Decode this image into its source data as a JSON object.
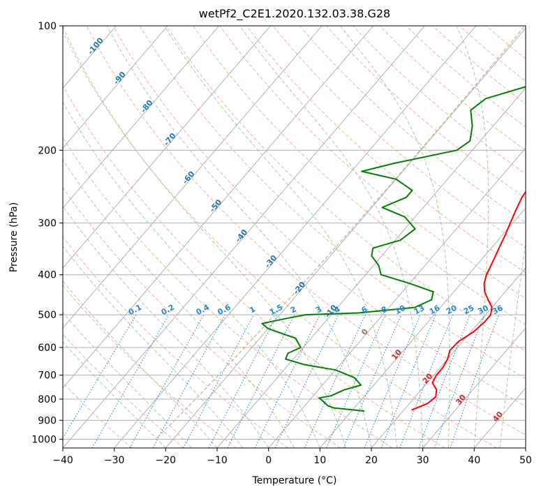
{
  "chart_data": {
    "type": "line",
    "title": "wetPf2_C2E1.2020.132.03.38.G28",
    "xlabel": "Temperature (°C)",
    "ylabel": "Pressure (hPa)",
    "xlim": [
      -40,
      50
    ],
    "ylim": [
      1050,
      100
    ],
    "y_scale": "log",
    "x_ticks": [
      "−40",
      "−30",
      "−20",
      "−10",
      "0",
      "10",
      "20",
      "30",
      "40",
      "50"
    ],
    "y_ticks": [
      {
        "p": 100,
        "label": "100"
      },
      {
        "p": 200,
        "label": "200"
      },
      {
        "p": 300,
        "label": "300"
      },
      {
        "p": 400,
        "label": "400"
      },
      {
        "p": 500,
        "label": "500"
      },
      {
        "p": 600,
        "label": "600"
      },
      {
        "p": 700,
        "label": "700"
      },
      {
        "p": 800,
        "label": "800"
      },
      {
        "p": 900,
        "label": "900"
      },
      {
        "p": 1000,
        "label": "1000"
      }
    ],
    "grid": true,
    "colors": {
      "temperature": "#ff0000",
      "dewpoint": "#008000",
      "isotherm_label": "#1f77b4",
      "mixing_ratio": "#1e88e5",
      "dry_adiabat": "#ffa07a",
      "moist_adiabat": "#90c890",
      "lcl_curve": "#d2b48c",
      "freezing_label": "#808080",
      "warm_label": "#d62728"
    },
    "series": [
      {
        "key": "temperature",
        "points": [
          [
            21.5,
            850
          ],
          [
            23.5,
            820
          ],
          [
            24,
            790
          ],
          [
            23,
            760
          ],
          [
            21,
            730
          ],
          [
            20.5,
            700
          ],
          [
            20.5,
            670
          ],
          [
            20,
            640
          ],
          [
            19,
            610
          ],
          [
            19.2,
            580
          ],
          [
            20.5,
            550
          ],
          [
            21,
            520
          ],
          [
            21,
            500
          ],
          [
            20,
            480
          ],
          [
            18,
            460
          ],
          [
            16,
            440
          ],
          [
            14.5,
            420
          ],
          [
            13.5,
            400
          ],
          [
            12.5,
            370
          ],
          [
            11.5,
            345
          ],
          [
            10.5,
            320
          ],
          [
            9.5,
            300
          ],
          [
            8.5,
            280
          ],
          [
            7.5,
            260
          ],
          [
            7,
            240
          ],
          [
            6.5,
            220
          ],
          [
            6,
            200
          ],
          [
            5,
            180
          ],
          [
            4.5,
            160
          ],
          [
            4,
            145
          ],
          [
            4,
            130
          ],
          [
            4.5,
            120
          ],
          [
            5.5,
            112
          ],
          [
            6.5,
            100
          ]
        ]
      },
      {
        "key": "dewpoint",
        "points": [
          [
            12.5,
            855
          ],
          [
            6,
            840
          ],
          [
            4.5,
            830
          ],
          [
            2,
            800
          ],
          [
            1.5,
            795
          ],
          [
            3.5,
            785
          ],
          [
            5,
            760
          ],
          [
            7.5,
            740
          ],
          [
            5,
            710
          ],
          [
            0,
            680
          ],
          [
            -7,
            660
          ],
          [
            -11.5,
            640
          ],
          [
            -12,
            620
          ],
          [
            -10.5,
            600
          ],
          [
            -13,
            570
          ],
          [
            -20,
            540
          ],
          [
            -22,
            525
          ],
          [
            -18,
            510
          ],
          [
            -15,
            500
          ],
          [
            -5,
            495
          ],
          [
            5,
            480
          ],
          [
            7,
            460
          ],
          [
            6,
            440
          ],
          [
            0,
            420
          ],
          [
            -7,
            400
          ],
          [
            -9,
            380
          ],
          [
            -12,
            360
          ],
          [
            -13,
            345
          ],
          [
            -9,
            330
          ],
          [
            -8,
            310
          ],
          [
            -12,
            290
          ],
          [
            -18,
            275
          ],
          [
            -15,
            260
          ],
          [
            -15,
            250
          ],
          [
            -20,
            235
          ],
          [
            -28,
            225
          ],
          [
            -23,
            215
          ],
          [
            -13,
            200
          ],
          [
            -12,
            190
          ],
          [
            -14,
            175
          ],
          [
            -17,
            160
          ],
          [
            -16,
            150
          ],
          [
            -10,
            140
          ],
          [
            -4,
            130
          ],
          [
            -2,
            120
          ],
          [
            -1,
            110
          ],
          [
            2,
            100
          ]
        ]
      }
    ],
    "isotherm_labels": [
      "-100",
      "-90",
      "-80",
      "-70",
      "-60",
      "-50",
      "-40",
      "-30",
      "-20",
      "-10"
    ],
    "mixing_ratio_labels": [
      "0.1",
      "0.2",
      "0.4",
      "0.6",
      "1",
      "1.5",
      "2",
      "3",
      "4",
      "6",
      "8",
      "10",
      "13",
      "16",
      "20",
      "25",
      "30",
      "36"
    ],
    "freezing_label": "0",
    "warm_isotherm_labels": [
      "10",
      "20",
      "30",
      "40"
    ]
  }
}
